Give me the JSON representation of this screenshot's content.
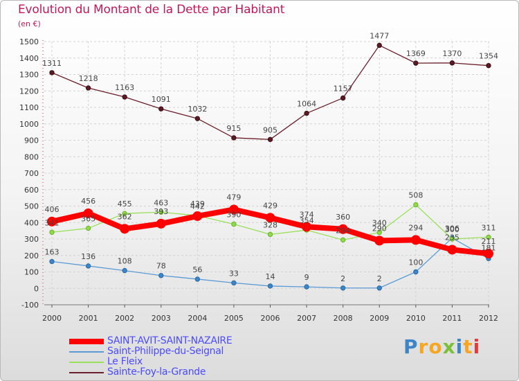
{
  "title": "Evolution du Montant de la Dette par Habitant",
  "unit": "(en €)",
  "logo_text": "Proxiti",
  "chart_data": {
    "type": "line",
    "title": "Evolution du Montant de la Dette par Habitant",
    "ylabel": "(en €)",
    "x": [
      "2000",
      "2001",
      "2002",
      "2003",
      "2004",
      "2005",
      "2006",
      "2007",
      "2008",
      "2009",
      "2010",
      "2011",
      "2012"
    ],
    "ylim": [
      -100,
      1500
    ],
    "yticks": [
      -100,
      0,
      100,
      200,
      300,
      400,
      500,
      600,
      700,
      800,
      900,
      1000,
      1100,
      1200,
      1300,
      1400,
      1500
    ],
    "grid": true,
    "legend_position": "bottom-left",
    "series": [
      {
        "name": "SAINT-AVIT-SAINT-NAZAIRE",
        "color": "#ff0000",
        "values": [
          406,
          456,
          362,
          393,
          439,
          479,
          429,
          374,
          360,
          290,
          294,
          235,
          211
        ],
        "labels": [
          "406",
          "456",
          "362",
          "393",
          "439",
          "479",
          "429",
          "374",
          "360",
          "290",
          "294",
          "235",
          "211"
        ]
      },
      {
        "name": "Saint-Philippe-du-Seignal",
        "color": "#5b9bd5",
        "values": [
          163,
          136,
          108,
          78,
          56,
          33,
          14,
          9,
          2,
          2,
          100,
          306,
          181
        ],
        "labels": [
          "163",
          "136",
          "108",
          "78",
          "56",
          "33",
          "14",
          "9",
          "2",
          "2",
          "100",
          "306",
          "181"
        ]
      },
      {
        "name": "Le Fleix",
        "color": "#99e05a",
        "values": [
          341,
          365,
          455,
          463,
          442,
          390,
          328,
          354,
          294,
          340,
          508,
          300,
          311
        ],
        "labels": [
          "341",
          "365",
          "455",
          "463",
          "442",
          "390",
          "328",
          "354",
          "294",
          "340",
          "508",
          "300",
          "311"
        ]
      },
      {
        "name": "Sainte-Foy-la-Grande",
        "color": "#6b1f2a",
        "values": [
          1311,
          1218,
          1163,
          1091,
          1032,
          915,
          905,
          1064,
          1157,
          1477,
          1369,
          1370,
          1354
        ],
        "labels": [
          "1311",
          "1218",
          "1163",
          "1091",
          "1032",
          "915",
          "905",
          "1064",
          "1157",
          "1477",
          "1369",
          "1370",
          "1354"
        ]
      }
    ]
  }
}
